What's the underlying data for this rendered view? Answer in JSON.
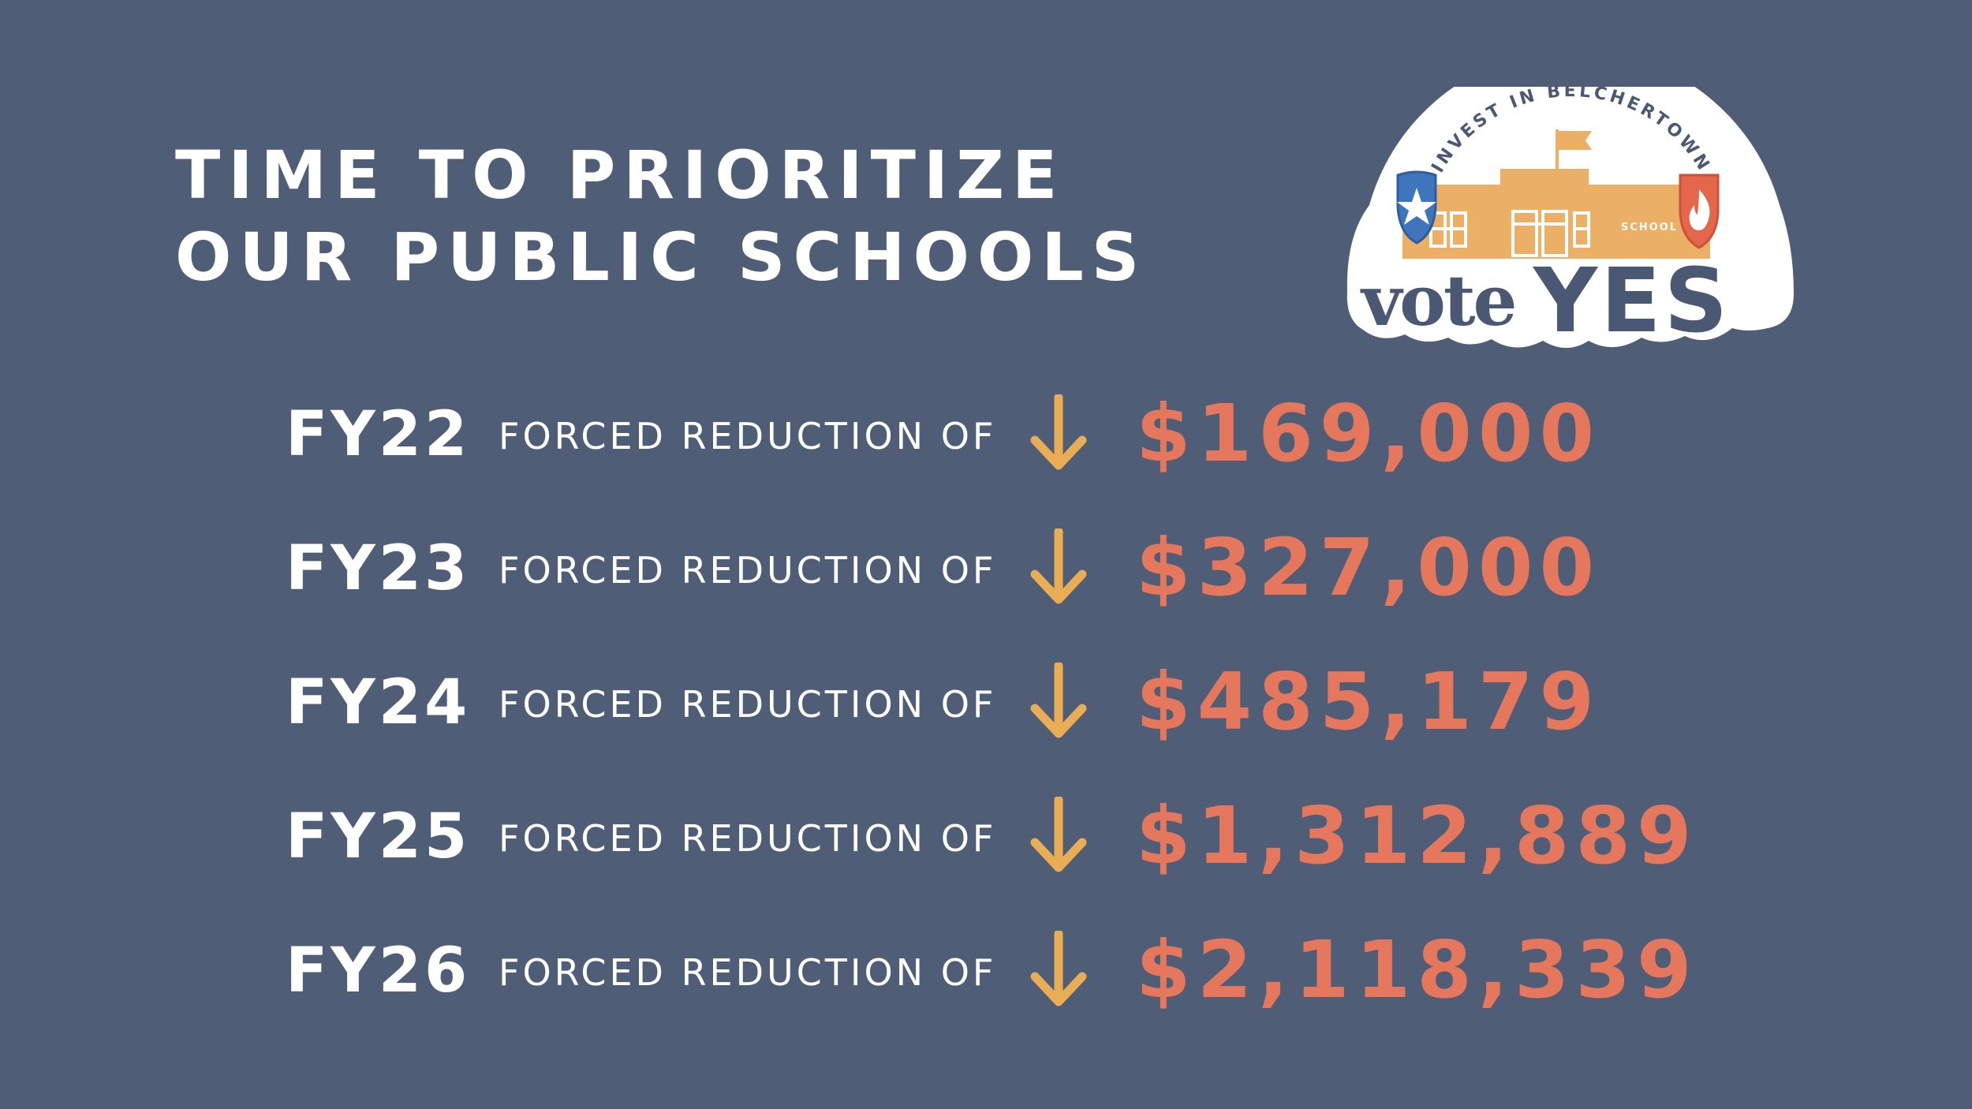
{
  "headline": {
    "line1": "TIME TO PRIORITIZE",
    "line2": "OUR PUBLIC SCHOOLS"
  },
  "badge": {
    "arc_text": "INVEST IN BELCHERTOWN",
    "school_sign": "SCHOOL",
    "vote_word": "vote",
    "yes_word": "YES",
    "icons": [
      "school-building-icon",
      "flag-icon",
      "star-shield-icon",
      "flame-shield-icon"
    ]
  },
  "rows": [
    {
      "fiscal_year": "FY22",
      "label": "FORCED REDUCTION OF",
      "amount": "$169,000",
      "icon": "down-arrow-icon"
    },
    {
      "fiscal_year": "FY23",
      "label": "FORCED REDUCTION OF",
      "amount": "$327,000",
      "icon": "down-arrow-icon"
    },
    {
      "fiscal_year": "FY24",
      "label": "FORCED REDUCTION OF",
      "amount": "$485,179",
      "icon": "down-arrow-icon"
    },
    {
      "fiscal_year": "FY25",
      "label": "FORCED REDUCTION OF",
      "amount": "$1,312,889",
      "icon": "down-arrow-icon"
    },
    {
      "fiscal_year": "FY26",
      "label": "FORCED REDUCTION OF",
      "amount": "$2,118,339",
      "icon": "down-arrow-icon"
    }
  ],
  "colors": {
    "background": "#4f5e76",
    "text": "#ffffff",
    "amount": "#e5775d",
    "arrow": "#e9ae55",
    "badge_fill": "#ffffff",
    "badge_navy": "#4a5874",
    "school": "#ecaf66",
    "shield_blue": "#3f75bd",
    "shield_red": "#e4674c"
  }
}
